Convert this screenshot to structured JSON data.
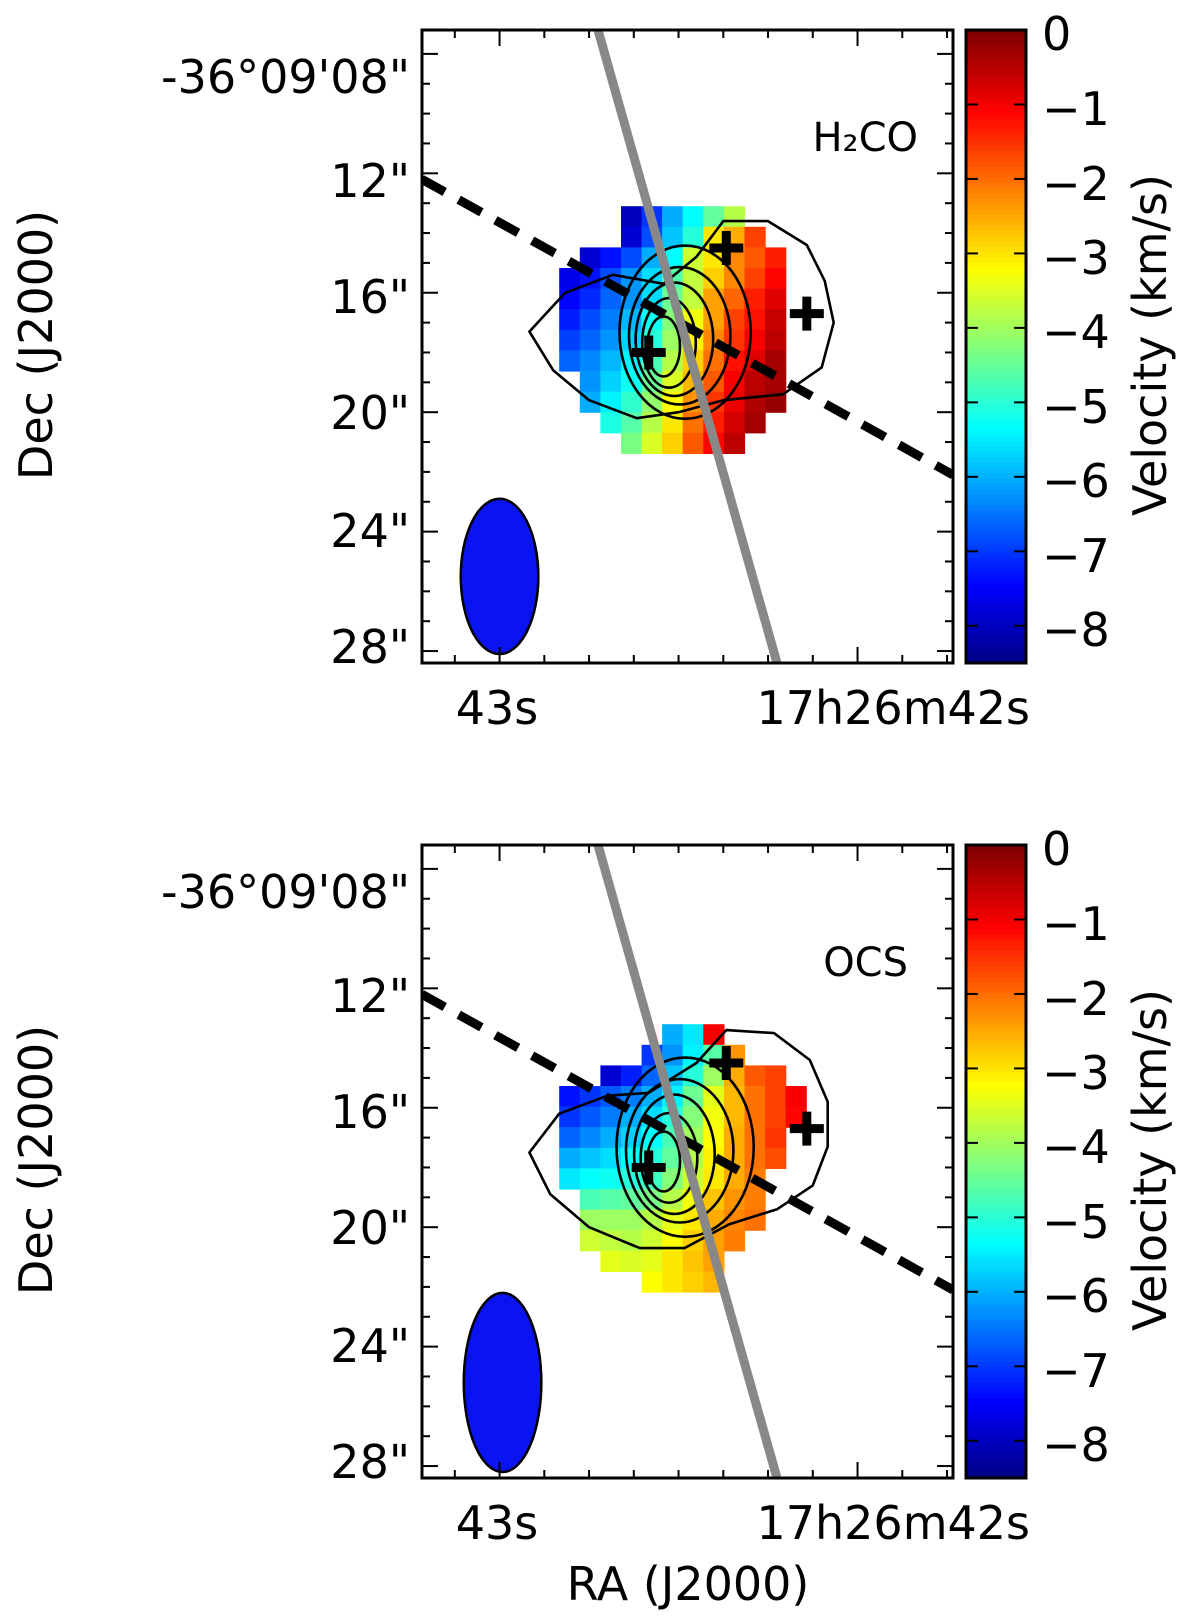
{
  "figure": {
    "xlabel": "RA (J2000)",
    "colors": {
      "frame": "#000000",
      "outflow_line": "#888888",
      "beam": "#0a14f0",
      "contour": "#000000",
      "axis_dash": "#000000"
    }
  },
  "chart_data": [
    {
      "type": "heatmap",
      "panel_label": "H₂CO",
      "ylabel": "Dec (J2000)",
      "colorbar_label": "Velocity (km/s)",
      "colorbar_range": [
        -8.5,
        0
      ],
      "colorbar_ticks": [
        0,
        -1,
        -2,
        -3,
        -4,
        -5,
        -6,
        -7,
        -8
      ],
      "colorbar_tick_labels": [
        "0",
        "−1",
        "−2",
        "−3",
        "−4",
        "−5",
        "−6",
        "−7",
        "−8"
      ],
      "x_tick_labels": [
        "43s",
        "17h26m42s"
      ],
      "y_tick_labels": [
        "-36°09'08\"",
        "12\"",
        "16\"",
        "20\"",
        "24\"",
        "28\""
      ],
      "y_tick_values_arcsec": [
        8,
        12,
        16,
        20,
        24,
        28
      ],
      "dec_range_arcsec": [
        7.2,
        28.4
      ],
      "ra_offset_range_arcsec": [
        -2.6,
        15.2
      ],
      "ra_tick_offsets_arcsec": [
        0,
        12
      ],
      "velocity_map": {
        "x0_arcsec": 2.0,
        "y0_arcsec": 13.1,
        "pixel_arcsec": 0.69,
        "rows": [
          [
            null,
            null,
            null,
            -8.0,
            -7.0,
            -6.0,
            -5.3,
            -4.5,
            -3.8,
            null,
            null,
            null
          ],
          [
            null,
            null,
            null,
            -7.8,
            -6.8,
            -5.8,
            -5.0,
            -3.0,
            -2.5,
            -1.6,
            null,
            null
          ],
          [
            null,
            -7.8,
            -7.3,
            -6.8,
            -6.0,
            -5.3,
            -3.6,
            -3.0,
            -2.2,
            -1.8,
            -1.3,
            null
          ],
          [
            -7.6,
            -7.3,
            -6.8,
            -6.2,
            -5.6,
            -4.6,
            -3.7,
            -2.8,
            -2.2,
            -1.6,
            -1.1,
            null
          ],
          [
            -7.4,
            -7.1,
            -6.6,
            -6.2,
            -5.6,
            -4.4,
            -3.7,
            -2.4,
            -1.9,
            -1.3,
            -0.8,
            null
          ],
          [
            -7.2,
            -6.8,
            -6.4,
            -5.9,
            -5.2,
            -4.2,
            -3.3,
            -2.4,
            -1.6,
            -1.2,
            -0.6,
            null
          ],
          [
            -6.9,
            -6.6,
            -6.2,
            -5.7,
            -5.0,
            -4.0,
            -3.1,
            -2.2,
            -1.5,
            -1.0,
            -0.5,
            null
          ],
          [
            -6.6,
            -6.3,
            -5.9,
            -5.4,
            -4.7,
            -3.8,
            -2.8,
            -2.0,
            -1.2,
            -0.8,
            -0.3,
            null
          ],
          [
            null,
            -6.2,
            -5.7,
            -5.2,
            -4.4,
            -3.5,
            -2.6,
            -1.8,
            -1.0,
            -0.5,
            -0.3,
            null
          ],
          [
            null,
            -6.0,
            -5.4,
            -4.9,
            -4.1,
            -3.2,
            -2.3,
            -1.5,
            -0.9,
            -0.4,
            -0.2,
            null
          ],
          [
            null,
            null,
            -5.1,
            -4.6,
            -3.8,
            -3.0,
            -2.0,
            -1.3,
            -0.7,
            -0.3,
            null,
            null
          ],
          [
            null,
            null,
            null,
            -4.3,
            -3.5,
            -2.8,
            -1.8,
            -1.1,
            -0.5,
            null,
            null,
            null
          ]
        ]
      },
      "contour_center_arcsec": [
        5.5,
        17.8
      ],
      "contour_radii_arcsec": [
        [
          0.55,
          1.0
        ],
        [
          0.9,
          1.5
        ],
        [
          1.3,
          1.9
        ],
        [
          1.7,
          2.3
        ],
        [
          2.2,
          2.9
        ]
      ],
      "outer_contour_arcsec": [
        [
          1.0,
          17.3
        ],
        [
          2.2,
          16.0
        ],
        [
          3.8,
          15.4
        ],
        [
          5.5,
          15.7
        ],
        [
          6.6,
          14.8
        ],
        [
          7.5,
          13.6
        ],
        [
          9.0,
          13.6
        ],
        [
          10.3,
          14.4
        ],
        [
          10.9,
          15.6
        ],
        [
          11.2,
          17.0
        ],
        [
          10.8,
          18.5
        ],
        [
          9.5,
          19.4
        ],
        [
          7.5,
          19.6
        ],
        [
          6.0,
          20.0
        ],
        [
          4.6,
          20.2
        ],
        [
          3.0,
          19.6
        ],
        [
          1.8,
          18.6
        ]
      ],
      "sources_arcsec": [
        [
          7.6,
          14.5
        ],
        [
          10.3,
          16.7
        ],
        [
          5.0,
          18.0
        ]
      ],
      "outflow_axis_arcsec": [
        [
          3.3,
          7.2
        ],
        [
          9.3,
          28.4
        ]
      ],
      "disk_axis_arcsec": [
        [
          -2.6,
          12.2
        ],
        [
          15.2,
          22.1
        ]
      ],
      "beam": {
        "x_arcsec": 0.0,
        "y_arcsec": 25.5,
        "major_arcsec": 2.6,
        "minor_arcsec": 1.3
      }
    },
    {
      "type": "heatmap",
      "panel_label": "OCS",
      "ylabel": "Dec (J2000)",
      "colorbar_label": "Velocity (km/s)",
      "colorbar_range": [
        -8.5,
        0
      ],
      "colorbar_ticks": [
        0,
        -1,
        -2,
        -3,
        -4,
        -5,
        -6,
        -7,
        -8
      ],
      "colorbar_tick_labels": [
        "0",
        "−1",
        "−2",
        "−3",
        "−4",
        "−5",
        "−6",
        "−7",
        "−8"
      ],
      "x_tick_labels": [
        "43s",
        "17h26m42s"
      ],
      "y_tick_labels": [
        "-36°09'08\"",
        "12\"",
        "16\"",
        "20\"",
        "24\"",
        "28\""
      ],
      "y_tick_values_arcsec": [
        8,
        12,
        16,
        20,
        24,
        28
      ],
      "dec_range_arcsec": [
        7.2,
        28.4
      ],
      "ra_offset_range_arcsec": [
        -2.6,
        15.2
      ],
      "ra_tick_offsets_arcsec": [
        0,
        12
      ],
      "velocity_map": {
        "x0_arcsec": 2.0,
        "y0_arcsec": 13.2,
        "pixel_arcsec": 0.69,
        "rows": [
          [
            null,
            null,
            null,
            null,
            null,
            -6.0,
            -5.5,
            -1.0,
            null,
            null,
            null,
            null
          ],
          [
            null,
            null,
            null,
            null,
            -7.0,
            -6.2,
            -5.4,
            -4.6,
            -2.3,
            null,
            null,
            null
          ],
          [
            null,
            null,
            -7.8,
            -7.2,
            -6.6,
            -5.8,
            -5.0,
            -4.0,
            -2.5,
            -1.8,
            -1.6,
            null
          ],
          [
            -7.3,
            -7.0,
            -6.7,
            -6.4,
            -6.0,
            -5.4,
            -4.4,
            -3.4,
            -2.6,
            -2.0,
            -1.6,
            -1.0
          ],
          [
            -7.0,
            -6.7,
            -6.4,
            -6.0,
            -5.6,
            -5.0,
            -4.2,
            -3.3,
            -2.6,
            -2.0,
            -1.6,
            -1.1
          ],
          [
            -6.6,
            -6.3,
            -6.0,
            -5.7,
            -5.3,
            -4.7,
            -4.0,
            -3.2,
            -2.5,
            -2.0,
            -1.5,
            null
          ],
          [
            -6.0,
            -5.8,
            -5.6,
            -5.3,
            -5.0,
            -4.5,
            -3.8,
            -3.1,
            -2.5,
            -2.0,
            -1.7,
            null
          ],
          [
            -5.5,
            -5.3,
            -5.2,
            -5.0,
            -4.8,
            -4.2,
            -3.6,
            -3.0,
            -2.5,
            -2.1,
            null,
            null
          ],
          [
            null,
            -4.7,
            -4.6,
            -4.5,
            -4.3,
            -3.8,
            -3.3,
            -2.7,
            -2.3,
            -2.1,
            null,
            null
          ],
          [
            null,
            -4.0,
            -4.0,
            -4.0,
            -3.8,
            -3.4,
            -3.0,
            -2.5,
            -2.2,
            -2.0,
            null,
            null
          ],
          [
            null,
            -3.6,
            -3.7,
            -3.8,
            -3.6,
            -3.2,
            -2.8,
            -2.4,
            -2.1,
            null,
            null,
            null
          ],
          [
            null,
            null,
            -3.4,
            -3.5,
            -3.4,
            -3.0,
            -2.7,
            -2.4,
            null,
            null,
            null,
            null
          ],
          [
            null,
            null,
            null,
            null,
            -3.2,
            -3.0,
            -2.8,
            -2.6,
            null,
            null,
            null,
            null
          ]
        ]
      },
      "contour_center_arcsec": [
        5.5,
        17.8
      ],
      "contour_radii_arcsec": [
        [
          0.55,
          1.0
        ],
        [
          0.95,
          1.5
        ],
        [
          1.35,
          2.0
        ],
        [
          1.8,
          2.4
        ],
        [
          2.3,
          3.0
        ]
      ],
      "outer_contour_arcsec": [
        [
          1.0,
          17.5
        ],
        [
          2.0,
          16.2
        ],
        [
          3.6,
          15.6
        ],
        [
          5.0,
          15.5
        ],
        [
          6.6,
          14.5
        ],
        [
          7.6,
          13.4
        ],
        [
          9.2,
          13.5
        ],
        [
          10.4,
          14.4
        ],
        [
          11.0,
          15.8
        ],
        [
          11.0,
          17.3
        ],
        [
          10.5,
          18.6
        ],
        [
          9.3,
          19.4
        ],
        [
          7.7,
          19.9
        ],
        [
          6.2,
          20.7
        ],
        [
          4.7,
          20.7
        ],
        [
          3.0,
          20.0
        ],
        [
          1.7,
          18.9
        ]
      ],
      "sources_arcsec": [
        [
          7.6,
          14.5
        ],
        [
          10.3,
          16.7
        ],
        [
          5.0,
          18.0
        ]
      ],
      "outflow_axis_arcsec": [
        [
          3.3,
          7.2
        ],
        [
          9.3,
          28.4
        ]
      ],
      "disk_axis_arcsec": [
        [
          -2.6,
          12.2
        ],
        [
          15.2,
          22.1
        ]
      ],
      "beam": {
        "x_arcsec": 0.1,
        "y_arcsec": 25.2,
        "major_arcsec": 3.0,
        "minor_arcsec": 1.3
      }
    }
  ]
}
